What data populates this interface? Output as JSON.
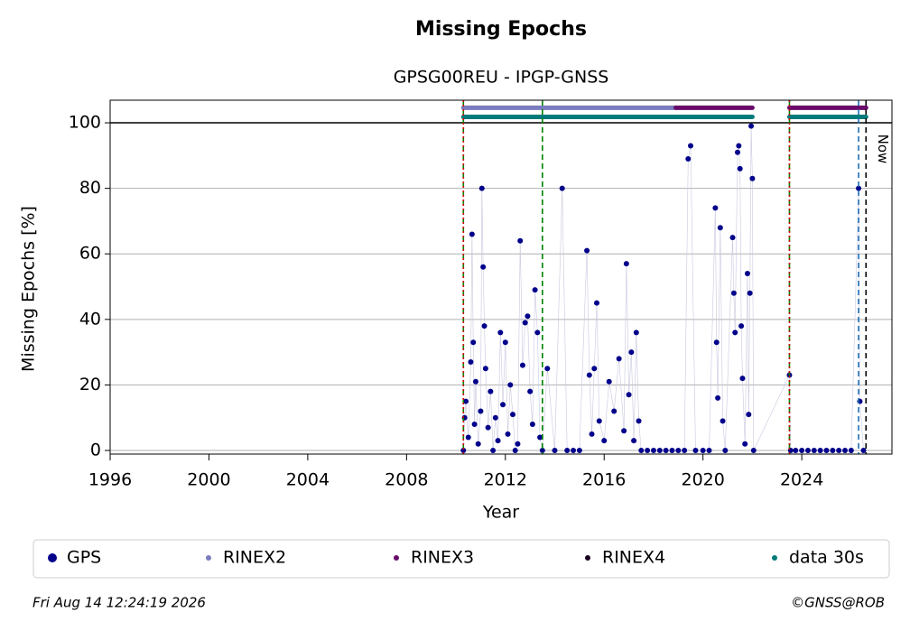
{
  "chart_data": {
    "type": "scatter",
    "title": "Missing Epochs",
    "subtitle": "GPSG00REU - IPGP-GNSS",
    "x_label": "Year",
    "y_label": "Missing Epochs [%]",
    "xlim": [
      1996,
      2027.65
    ],
    "ylim": [
      -1.1,
      106.9
    ],
    "xticks": [
      1996,
      2000,
      2004,
      2008,
      2012,
      2016,
      2020,
      2024
    ],
    "yticks": [
      0,
      20,
      40,
      60,
      80,
      100
    ],
    "grid": true,
    "hline": 100,
    "series": [
      {
        "name": "GPS",
        "color": "#00008b",
        "x": [
          2010.3,
          2010.35,
          2010.4,
          2010.5,
          2010.6,
          2010.65,
          2010.7,
          2010.75,
          2010.8,
          2010.9,
          2011.0,
          2011.05,
          2011.1,
          2011.15,
          2011.2,
          2011.3,
          2011.4,
          2011.5,
          2011.6,
          2011.7,
          2011.8,
          2011.9,
          2012.0,
          2012.1,
          2012.2,
          2012.3,
          2012.4,
          2012.5,
          2012.6,
          2012.7,
          2012.8,
          2012.9,
          2013.0,
          2013.1,
          2013.2,
          2013.3,
          2013.4,
          2013.5,
          2013.7,
          2014.0,
          2014.3,
          2014.5,
          2014.75,
          2015.0,
          2015.3,
          2015.4,
          2015.5,
          2015.6,
          2015.7,
          2015.8,
          2016.0,
          2016.2,
          2016.4,
          2016.6,
          2016.8,
          2016.9,
          2017.0,
          2017.1,
          2017.2,
          2017.3,
          2017.4,
          2017.5,
          2017.75,
          2018.0,
          2018.25,
          2018.5,
          2018.75,
          2019.0,
          2019.25,
          2019.4,
          2019.5,
          2019.7,
          2020.0,
          2020.25,
          2020.5,
          2020.55,
          2020.6,
          2020.7,
          2020.8,
          2020.9,
          2021.2,
          2021.25,
          2021.3,
          2021.4,
          2021.45,
          2021.5,
          2021.55,
          2021.6,
          2021.7,
          2021.8,
          2021.85,
          2021.9,
          2021.95,
          2022.0,
          2022.05,
          2023.5,
          2023.55,
          2023.75,
          2024.0,
          2024.25,
          2024.5,
          2024.75,
          2025.0,
          2025.25,
          2025.5,
          2025.75,
          2026.0,
          2026.3,
          2026.35,
          2026.5
        ],
        "values": [
          0,
          10,
          15,
          4,
          27,
          66,
          33,
          8,
          21,
          2,
          12,
          80,
          56,
          38,
          25,
          7,
          18,
          0,
          10,
          3,
          36,
          14,
          33,
          5,
          20,
          11,
          0,
          2,
          64,
          26,
          39,
          41,
          18,
          8,
          49,
          36,
          4,
          0,
          25,
          0,
          80,
          0,
          0,
          0,
          61,
          23,
          5,
          25,
          45,
          9,
          3,
          21,
          12,
          28,
          6,
          57,
          17,
          30,
          3,
          36,
          9,
          0,
          0,
          0,
          0,
          0,
          0,
          0,
          0,
          89,
          93,
          0,
          0,
          0,
          74,
          33,
          16,
          68,
          9,
          0,
          65,
          48,
          36,
          91,
          93,
          86,
          38,
          22,
          2,
          54,
          11,
          48,
          99,
          83,
          0,
          23,
          0,
          0,
          0,
          0,
          0,
          0,
          0,
          0,
          0,
          0,
          0,
          80,
          15,
          0
        ]
      },
      {
        "name": "RINEX2",
        "color": "#7b7bbf",
        "level": 104.6,
        "spans": [
          [
            2010.3,
            2018.9
          ]
        ]
      },
      {
        "name": "RINEX3",
        "color": "#6a0a6a",
        "level": 104.6,
        "spans": [
          [
            2018.9,
            2022.0
          ],
          [
            2023.5,
            2026.6
          ]
        ]
      },
      {
        "name": "RINEX4",
        "color": "#1a0020",
        "level": 104.6,
        "spans": []
      },
      {
        "name": "data 30s",
        "color": "#007a7a",
        "level": 101.8,
        "spans": [
          [
            2010.3,
            2022.0
          ],
          [
            2023.5,
            2026.6
          ]
        ]
      }
    ],
    "vlines": [
      {
        "x": 2010.3,
        "color": "#008000",
        "style": "dashed"
      },
      {
        "x": 2010.3,
        "color": "#cc0000",
        "style": "dotted"
      },
      {
        "x": 2013.5,
        "color": "#008000",
        "style": "dashed"
      },
      {
        "x": 2023.5,
        "color": "#008000",
        "style": "dashed"
      },
      {
        "x": 2023.5,
        "color": "#cc0000",
        "style": "dotted"
      },
      {
        "x": 2026.3,
        "color": "#1f6fb4",
        "style": "dashed"
      },
      {
        "x": 2026.6,
        "color": "#000000",
        "style": "dashed",
        "label": "Now"
      }
    ],
    "timestamp": "Fri Aug 14 12:24:19 2026",
    "credit": "©GNSS@ROB"
  }
}
